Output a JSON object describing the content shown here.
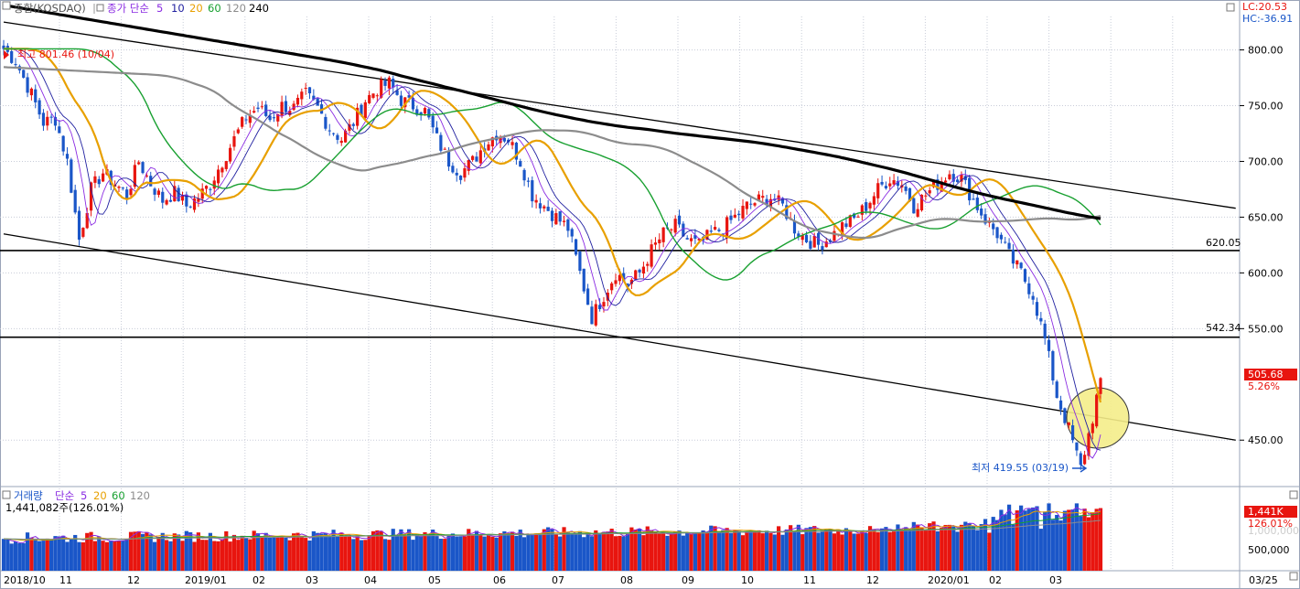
{
  "colors": {
    "up": "#e8150f",
    "down": "#1a56c8",
    "ma5": "#8a2be2",
    "ma10": "#2020a0",
    "ma20": "#e8a000",
    "ma60": "#18a030",
    "ma120": "#8c8c8c",
    "ma240": "#000000",
    "grid": "#c8ccd8",
    "highlight": "#f5ee8a"
  },
  "header": {
    "index_name": "종합(KOSDAQ)",
    "ma_label": "종가 단순",
    "periods": [
      "5",
      "10",
      "20",
      "60",
      "120",
      "240"
    ],
    "lc": "LC:20.53",
    "hc": "HC:-36.91"
  },
  "volume_header": {
    "label": "거래량",
    "ma_label": "단순",
    "periods": [
      "5",
      "20",
      "60",
      "120"
    ],
    "current": "1,441,082주(126.01%)"
  },
  "annotations": {
    "high": "최고 801.46 (10/04)",
    "low": "최저 419.55 (03/19)",
    "line1": "620.05",
    "line2": "542.34",
    "price_badge": "505.68",
    "pct_badge": "5.26%",
    "vol_badge": "1,441K",
    "vol_pct": "126.01%",
    "vol_tick_hidden": "1,000,000"
  },
  "chart_data": {
    "type": "candlestick",
    "y_axis": {
      "range": [
        410,
        830
      ],
      "ticks": [
        "800.00",
        "750.00",
        "700.00",
        "650.00",
        "600.00",
        "550.00",
        "450.00"
      ]
    },
    "volume_axis": {
      "range": [
        0,
        1600000
      ],
      "ticks": [
        "500,000"
      ]
    },
    "x_axis": {
      "labels": [
        "2018/10",
        "11",
        "12",
        "2019/01",
        "02",
        "03",
        "04",
        "05",
        "06",
        "07",
        "08",
        "09",
        "10",
        "11",
        "12",
        "2020/01",
        "02",
        "03",
        "03/25"
      ]
    },
    "price_path": [
      [
        0,
        801
      ],
      [
        3,
        790
      ],
      [
        7,
        760
      ],
      [
        10,
        735
      ],
      [
        13,
        738
      ],
      [
        16,
        700
      ],
      [
        19,
        630
      ],
      [
        22,
        675
      ],
      [
        25,
        690
      ],
      [
        28,
        680
      ],
      [
        31,
        670
      ],
      [
        34,
        700
      ],
      [
        37,
        680
      ],
      [
        40,
        665
      ],
      [
        43,
        672
      ],
      [
        46,
        660
      ],
      [
        49,
        668
      ],
      [
        52,
        680
      ],
      [
        55,
        700
      ],
      [
        58,
        720
      ],
      [
        61,
        740
      ],
      [
        64,
        748
      ],
      [
        67,
        738
      ],
      [
        70,
        750
      ],
      [
        73,
        748
      ],
      [
        76,
        760
      ],
      [
        79,
        748
      ],
      [
        82,
        730
      ],
      [
        85,
        720
      ],
      [
        88,
        735
      ],
      [
        91,
        755
      ],
      [
        94,
        765
      ],
      [
        97,
        770
      ],
      [
        100,
        755
      ],
      [
        103,
        750
      ],
      [
        106,
        745
      ],
      [
        109,
        720
      ],
      [
        112,
        700
      ],
      [
        115,
        690
      ],
      [
        118,
        700
      ],
      [
        121,
        715
      ],
      [
        124,
        725
      ],
      [
        127,
        720
      ],
      [
        130,
        700
      ],
      [
        133,
        670
      ],
      [
        136,
        660
      ],
      [
        139,
        650
      ],
      [
        142,
        640
      ],
      [
        145,
        600
      ],
      [
        148,
        560
      ],
      [
        151,
        580
      ],
      [
        154,
        600
      ],
      [
        157,
        590
      ],
      [
        160,
        600
      ],
      [
        163,
        620
      ],
      [
        166,
        635
      ],
      [
        169,
        642
      ],
      [
        172,
        630
      ],
      [
        175,
        625
      ],
      [
        178,
        635
      ],
      [
        181,
        640
      ],
      [
        184,
        650
      ],
      [
        187,
        660
      ],
      [
        190,
        665
      ],
      [
        193,
        668
      ],
      [
        196,
        660
      ],
      [
        199,
        640
      ],
      [
        202,
        630
      ],
      [
        205,
        625
      ],
      [
        208,
        632
      ],
      [
        211,
        642
      ],
      [
        214,
        648
      ],
      [
        217,
        660
      ],
      [
        220,
        675
      ],
      [
        223,
        685
      ],
      [
        226,
        680
      ],
      [
        229,
        660
      ],
      [
        232,
        670
      ],
      [
        235,
        680
      ],
      [
        238,
        690
      ],
      [
        241,
        685
      ],
      [
        244,
        665
      ],
      [
        247,
        648
      ],
      [
        250,
        635
      ],
      [
        253,
        615
      ],
      [
        256,
        600
      ],
      [
        259,
        580
      ],
      [
        262,
        540
      ],
      [
        265,
        490
      ],
      [
        268,
        460
      ],
      [
        271,
        425
      ],
      [
        274,
        470
      ],
      [
        276,
        505.68
      ]
    ],
    "ma_series": [
      {
        "name": "5",
        "shift": 3,
        "smooth": 1
      },
      {
        "name": "10",
        "shift": 5,
        "smooth": 2
      },
      {
        "name": "20",
        "shift": 10,
        "smooth": 4
      },
      {
        "name": "60",
        "shift": 28,
        "smooth": 10
      },
      {
        "name": "120",
        "shift": 55,
        "smooth": 18
      },
      {
        "name": "240",
        "shift": 110,
        "smooth": 30
      }
    ],
    "hlines": [
      620.05,
      542.34
    ],
    "trendlines": [
      {
        "from": [
          0,
          825
        ],
        "to": [
          310,
          658
        ]
      },
      {
        "from": [
          0,
          635
        ],
        "to": [
          310,
          450
        ]
      }
    ],
    "high": {
      "value": 801.46,
      "date": "10/04"
    },
    "low": {
      "value": 419.55,
      "date": "03/19"
    },
    "last": 505.68
  }
}
